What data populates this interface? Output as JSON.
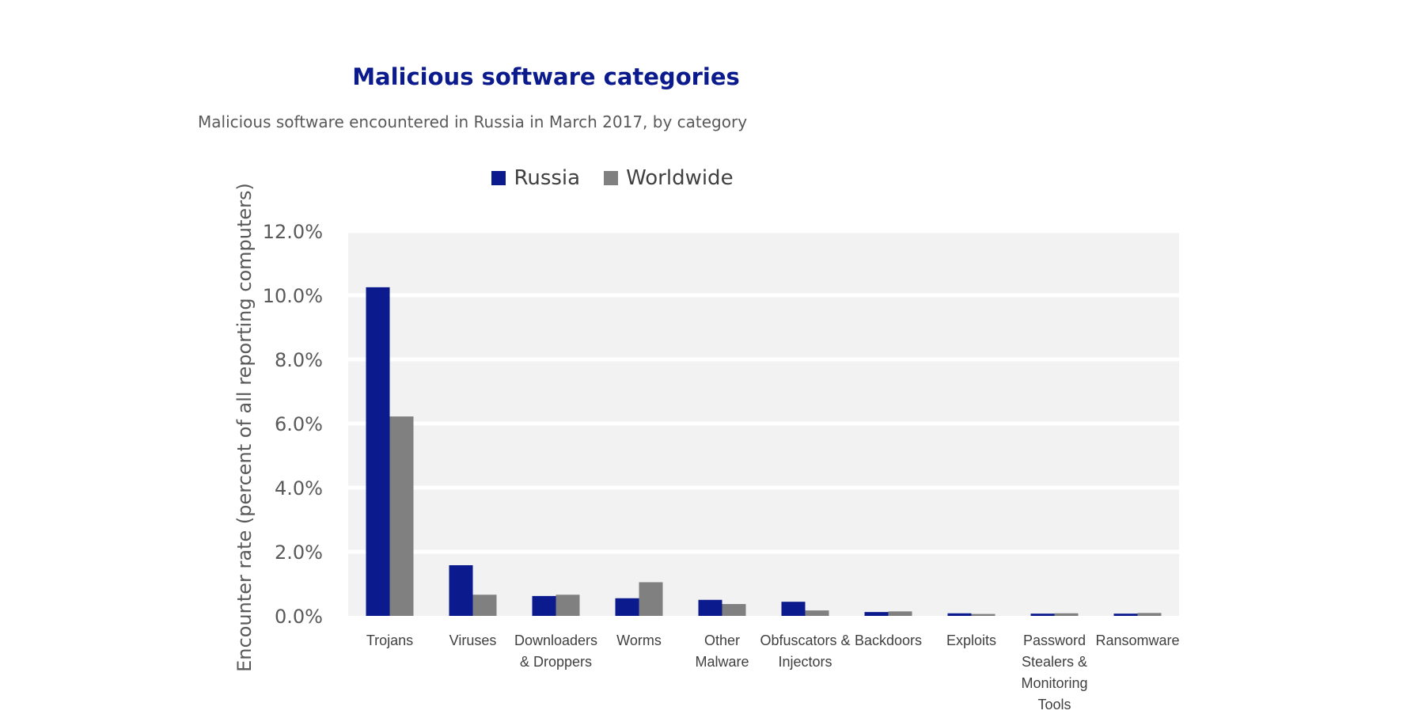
{
  "chart_data": {
    "type": "bar",
    "title": "Malicious software categories",
    "subtitle": "Malicious software encountered in Russia in March 2017, by category",
    "ylabel": "Encounter rate (percent of all reporting computers)",
    "xlabel": "",
    "ylim": [
      0,
      12
    ],
    "yticks": [
      "0.0%",
      "2.0%",
      "4.0%",
      "6.0%",
      "8.0%",
      "10.0%",
      "12.0%"
    ],
    "ytick_values": [
      0,
      2,
      4,
      6,
      8,
      10,
      12
    ],
    "legend_position": "top-center",
    "grid": true,
    "categories": [
      "Trojans",
      "Viruses",
      "Downloaders & Droppers",
      "Worms",
      "Other Malware",
      "Obfuscators & Injectors",
      "Backdoors",
      "Exploits",
      "Password Stealers & Monitoring Tools",
      "Ransomware"
    ],
    "category_lines": [
      [
        "Trojans"
      ],
      [
        "Viruses"
      ],
      [
        "Downloaders",
        "& Droppers"
      ],
      [
        "Worms"
      ],
      [
        "Other",
        "Malware"
      ],
      [
        "Obfuscators &",
        "Injectors"
      ],
      [
        "Backdoors"
      ],
      [
        "Exploits"
      ],
      [
        "Password",
        "Stealers &",
        "Monitoring",
        "Tools"
      ],
      [
        "Ransomware"
      ]
    ],
    "series": [
      {
        "name": "Russia",
        "color": "#0b1a8c",
        "values": [
          10.25,
          1.58,
          0.62,
          0.55,
          0.5,
          0.44,
          0.12,
          0.08,
          0.07,
          0.07
        ]
      },
      {
        "name": "Worldwide",
        "color": "#808080",
        "values": [
          6.22,
          0.66,
          0.66,
          1.05,
          0.37,
          0.17,
          0.14,
          0.06,
          0.08,
          0.09
        ]
      }
    ],
    "colors": {
      "plot_background": "#f2f2f2",
      "gridline": "#ffffff",
      "title": "#0b1a8c"
    }
  }
}
